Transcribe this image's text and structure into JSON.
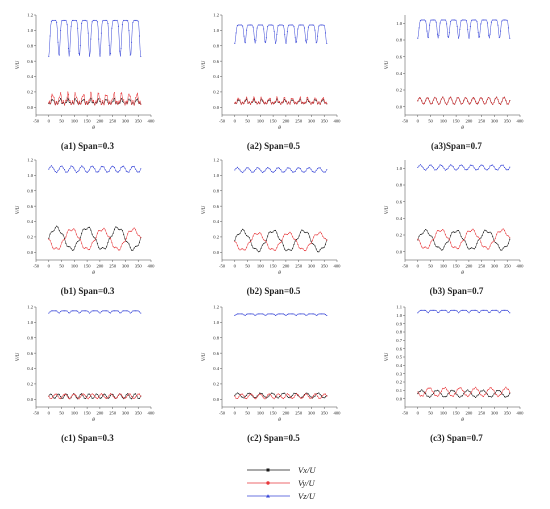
{
  "colors": {
    "vx": "#1a1a1a",
    "vy": "#e8393c",
    "vz": "#3a48d8"
  },
  "legend": [
    {
      "key": "vx",
      "label": "Vx/U",
      "marker": "square"
    },
    {
      "key": "vy",
      "label": "Vy/U",
      "marker": "circle"
    },
    {
      "key": "vz",
      "label": "Vz/U",
      "marker": "triangle"
    }
  ],
  "chart_data": [
    {
      "type": "line",
      "caption": "(a1) Span=0.3",
      "xlabel": "θ",
      "ylabel": "V/U",
      "xlim": [
        -50,
        400
      ],
      "ylim": [
        -0.1,
        1.2
      ],
      "xticks": [
        -50,
        0,
        50,
        100,
        150,
        200,
        250,
        300,
        350,
        400
      ],
      "yticks": [
        0.0,
        0.2,
        0.4,
        0.6,
        0.8,
        1.0,
        1.2
      ],
      "x_range": [
        0,
        360
      ],
      "series": [
        {
          "key": "vx",
          "name": "Vx/U",
          "mean": 0.07,
          "amp": 0.06,
          "periods": 12,
          "shape": "spiky"
        },
        {
          "key": "vy",
          "name": "Vy/U",
          "mean": 0.1,
          "amp": 0.12,
          "periods": 12,
          "shape": "spiky"
        },
        {
          "key": "vz",
          "name": "Vz/U",
          "mean": 1.13,
          "amp": 0.47,
          "periods": 9,
          "shape": "dip"
        }
      ]
    },
    {
      "type": "line",
      "caption": "(a2) Span=0.5",
      "xlabel": "θ",
      "ylabel": "V/U",
      "xlim": [
        -50,
        400
      ],
      "ylim": [
        -0.1,
        1.2
      ],
      "xticks": [
        -50,
        0,
        50,
        100,
        150,
        200,
        250,
        300,
        350,
        400
      ],
      "yticks": [
        0.0,
        0.2,
        0.4,
        0.6,
        0.8,
        1.0,
        1.2
      ],
      "x_range": [
        0,
        360
      ],
      "series": [
        {
          "key": "vx",
          "name": "Vx/U",
          "mean": 0.07,
          "amp": 0.05,
          "periods": 12,
          "shape": "spiky"
        },
        {
          "key": "vy",
          "name": "Vy/U",
          "mean": 0.08,
          "amp": 0.07,
          "periods": 12,
          "shape": "spiky"
        },
        {
          "key": "vz",
          "name": "Vz/U",
          "mean": 1.07,
          "amp": 0.24,
          "periods": 9,
          "shape": "dip"
        }
      ]
    },
    {
      "type": "line",
      "caption": "(a3)Span=0.7",
      "xlabel": "θ",
      "ylabel": "V/U",
      "xlim": [
        -50,
        400
      ],
      "ylim": [
        -0.1,
        1.1
      ],
      "xticks": [
        -50,
        0,
        50,
        100,
        150,
        200,
        250,
        300,
        350,
        400
      ],
      "yticks": [
        0.0,
        0.2,
        0.4,
        0.6,
        0.8,
        1.0
      ],
      "x_range": [
        0,
        360
      ],
      "series": [
        {
          "key": "vx",
          "name": "Vx/U",
          "mean": 0.07,
          "amp": 0.04,
          "periods": 12,
          "shape": "wave"
        },
        {
          "key": "vy",
          "name": "Vy/U",
          "mean": 0.07,
          "amp": 0.04,
          "periods": 12,
          "shape": "wave"
        },
        {
          "key": "vz",
          "name": "Vz/U",
          "mean": 1.04,
          "amp": 0.22,
          "periods": 9,
          "shape": "dip"
        }
      ]
    },
    {
      "type": "line",
      "caption": "(b1) Span=0.3",
      "xlabel": "θ",
      "ylabel": "V/U",
      "xlim": [
        -50,
        400
      ],
      "ylim": [
        -0.1,
        1.2
      ],
      "xticks": [
        -50,
        0,
        50,
        100,
        150,
        200,
        250,
        300,
        350,
        400
      ],
      "yticks": [
        0.0,
        0.2,
        0.4,
        0.6,
        0.8,
        1.0,
        1.2
      ],
      "x_range": [
        0,
        360
      ],
      "series": [
        {
          "key": "vx",
          "name": "Vx/U",
          "mean": 0.18,
          "amp": 0.14,
          "periods": 3,
          "shape": "wave"
        },
        {
          "key": "vy",
          "name": "Vy/U",
          "mean": 0.17,
          "amp": 0.13,
          "periods": 3,
          "shape": "anti"
        },
        {
          "key": "vz",
          "name": "Vz/U",
          "mean": 1.08,
          "amp": 0.04,
          "periods": 9,
          "shape": "wave"
        }
      ]
    },
    {
      "type": "line",
      "caption": "(b2) Span=0.5",
      "xlabel": "θ",
      "ylabel": "V/U",
      "xlim": [
        -50,
        400
      ],
      "ylim": [
        -0.1,
        1.2
      ],
      "xticks": [
        -50,
        0,
        50,
        100,
        150,
        200,
        250,
        300,
        350,
        400
      ],
      "yticks": [
        0.0,
        0.2,
        0.4,
        0.6,
        0.8,
        1.0,
        1.2
      ],
      "x_range": [
        0,
        360
      ],
      "series": [
        {
          "key": "vx",
          "name": "Vx/U",
          "mean": 0.15,
          "amp": 0.13,
          "periods": 3,
          "shape": "wave"
        },
        {
          "key": "vy",
          "name": "Vy/U",
          "mean": 0.14,
          "amp": 0.11,
          "periods": 3,
          "shape": "anti"
        },
        {
          "key": "vz",
          "name": "Vz/U",
          "mean": 1.07,
          "amp": 0.03,
          "periods": 9,
          "shape": "wave"
        }
      ]
    },
    {
      "type": "line",
      "caption": "(b3) Span=0.7",
      "xlabel": "θ",
      "ylabel": "V/U",
      "xlim": [
        -50,
        400
      ],
      "ylim": [
        -0.1,
        1.1
      ],
      "xticks": [
        -50,
        0,
        50,
        100,
        150,
        200,
        250,
        300,
        350,
        400
      ],
      "yticks": [
        0.0,
        0.2,
        0.4,
        0.6,
        0.8,
        1.0
      ],
      "x_range": [
        0,
        360
      ],
      "series": [
        {
          "key": "vx",
          "name": "Vx/U",
          "mean": 0.14,
          "amp": 0.11,
          "periods": 3,
          "shape": "wave"
        },
        {
          "key": "vy",
          "name": "Vy/U",
          "mean": 0.15,
          "amp": 0.11,
          "periods": 3,
          "shape": "anti"
        },
        {
          "key": "vz",
          "name": "Vz/U",
          "mean": 1.01,
          "amp": 0.03,
          "periods": 9,
          "shape": "wave"
        }
      ]
    },
    {
      "type": "line",
      "caption": "(c1) Span=0.3",
      "xlabel": "θ",
      "ylabel": "V/U",
      "xlim": [
        -50,
        400
      ],
      "ylim": [
        -0.1,
        1.2
      ],
      "xticks": [
        -50,
        0,
        50,
        100,
        150,
        200,
        250,
        300,
        350,
        400
      ],
      "yticks": [
        0.0,
        0.2,
        0.4,
        0.6,
        0.8,
        1.0,
        1.2
      ],
      "x_range": [
        0,
        360
      ],
      "series": [
        {
          "key": "vx",
          "name": "Vx/U",
          "mean": 0.04,
          "amp": 0.03,
          "periods": 12,
          "shape": "wave"
        },
        {
          "key": "vy",
          "name": "Vy/U",
          "mean": 0.04,
          "amp": 0.03,
          "periods": 10,
          "shape": "anti"
        },
        {
          "key": "vz",
          "name": "Vz/U",
          "mean": 1.15,
          "amp": 0.03,
          "periods": 9,
          "shape": "dip"
        }
      ]
    },
    {
      "type": "line",
      "caption": "(c2) Span=0.5",
      "xlabel": "θ",
      "ylabel": "V/U",
      "xlim": [
        -50,
        400
      ],
      "ylim": [
        -0.1,
        1.2
      ],
      "xticks": [
        -50,
        0,
        50,
        100,
        150,
        200,
        250,
        300,
        350,
        400
      ],
      "yticks": [
        0.0,
        0.2,
        0.4,
        0.6,
        0.8,
        1.0,
        1.2
      ],
      "x_range": [
        0,
        360
      ],
      "series": [
        {
          "key": "vx",
          "name": "Vx/U",
          "mean": 0.05,
          "amp": 0.03,
          "periods": 8,
          "shape": "wave"
        },
        {
          "key": "vy",
          "name": "Vy/U",
          "mean": 0.04,
          "amp": 0.03,
          "periods": 10,
          "shape": "anti"
        },
        {
          "key": "vz",
          "name": "Vz/U",
          "mean": 1.11,
          "amp": 0.02,
          "periods": 9,
          "shape": "dip"
        }
      ]
    },
    {
      "type": "line",
      "caption": "(c3) Span=0.7",
      "xlabel": "θ",
      "ylabel": "V/U",
      "xlim": [
        -50,
        400
      ],
      "ylim": [
        -0.1,
        1.1
      ],
      "xticks": [
        -50,
        0,
        50,
        100,
        150,
        200,
        250,
        300,
        350,
        400
      ],
      "yticks": [
        0.0,
        0.1,
        0.2,
        0.3,
        0.4,
        0.5,
        0.6,
        0.7,
        0.8,
        0.9,
        1.0,
        1.1
      ],
      "x_range": [
        0,
        360
      ],
      "series": [
        {
          "key": "vx",
          "name": "Vx/U",
          "mean": 0.06,
          "amp": 0.04,
          "periods": 6,
          "shape": "wave"
        },
        {
          "key": "vy",
          "name": "Vy/U",
          "mean": 0.08,
          "amp": 0.05,
          "periods": 6,
          "shape": "anti"
        },
        {
          "key": "vz",
          "name": "Vz/U",
          "mean": 1.06,
          "amp": 0.03,
          "periods": 9,
          "shape": "dip"
        }
      ]
    }
  ]
}
